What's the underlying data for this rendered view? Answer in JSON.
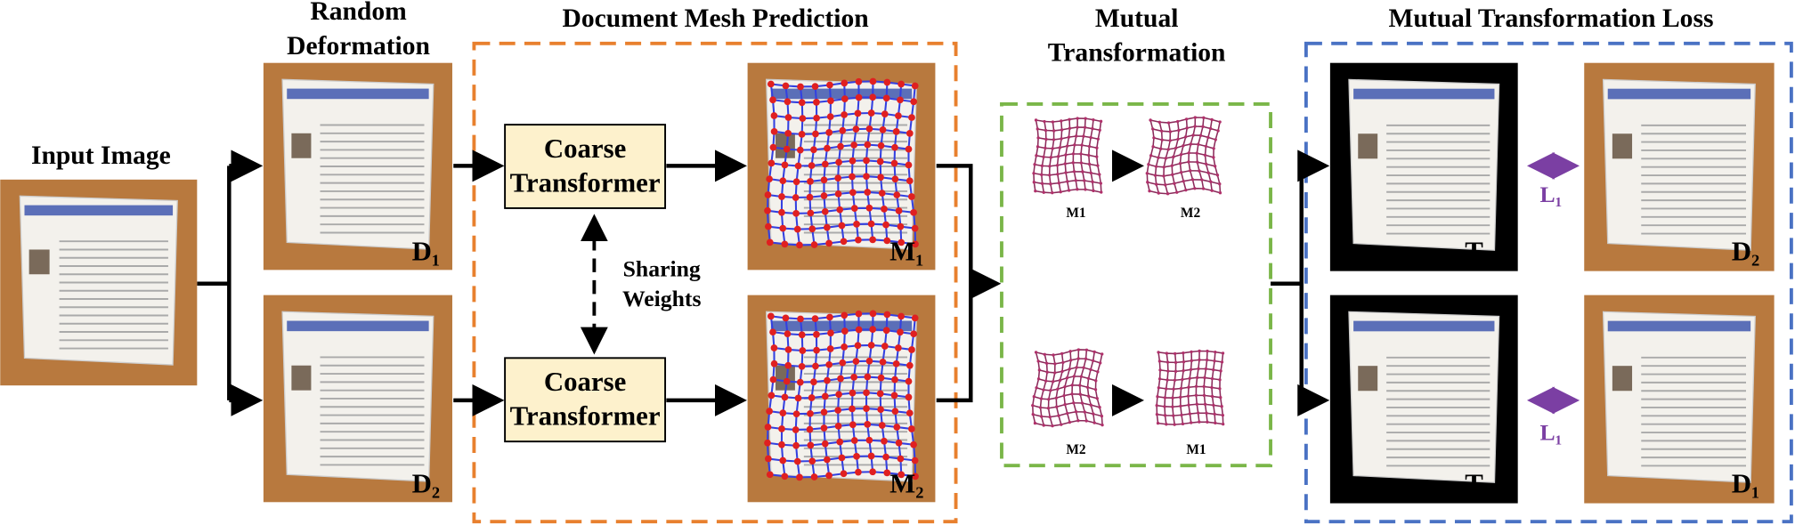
{
  "input_image": {
    "title": "Input Image"
  },
  "random_deformation": {
    "title_lines": [
      "Random",
      "Deformation"
    ],
    "images": [
      "D₁",
      "D₂"
    ]
  },
  "document_mesh_prediction": {
    "title": "Document Mesh Prediction",
    "transformers": [
      [
        "Coarse",
        "Transformer"
      ],
      [
        "Coarse",
        "Transformer"
      ]
    ],
    "shared_note": [
      "Sharing",
      "Weights"
    ],
    "meshes": [
      "M₁",
      "M₂"
    ]
  },
  "mutual_transformation": {
    "title_lines": [
      "Mutual",
      "Transformation"
    ],
    "pairs": [
      [
        "M1",
        "M2"
      ],
      [
        "M2",
        "M1"
      ]
    ]
  },
  "mutual_transformation_loss": {
    "title": "Mutual Transformation Loss",
    "transformed": [
      "T₁₂",
      "T₂₁"
    ],
    "losses": [
      "L₁",
      "L₁"
    ],
    "targets": [
      "D₂",
      "D₁"
    ]
  }
}
